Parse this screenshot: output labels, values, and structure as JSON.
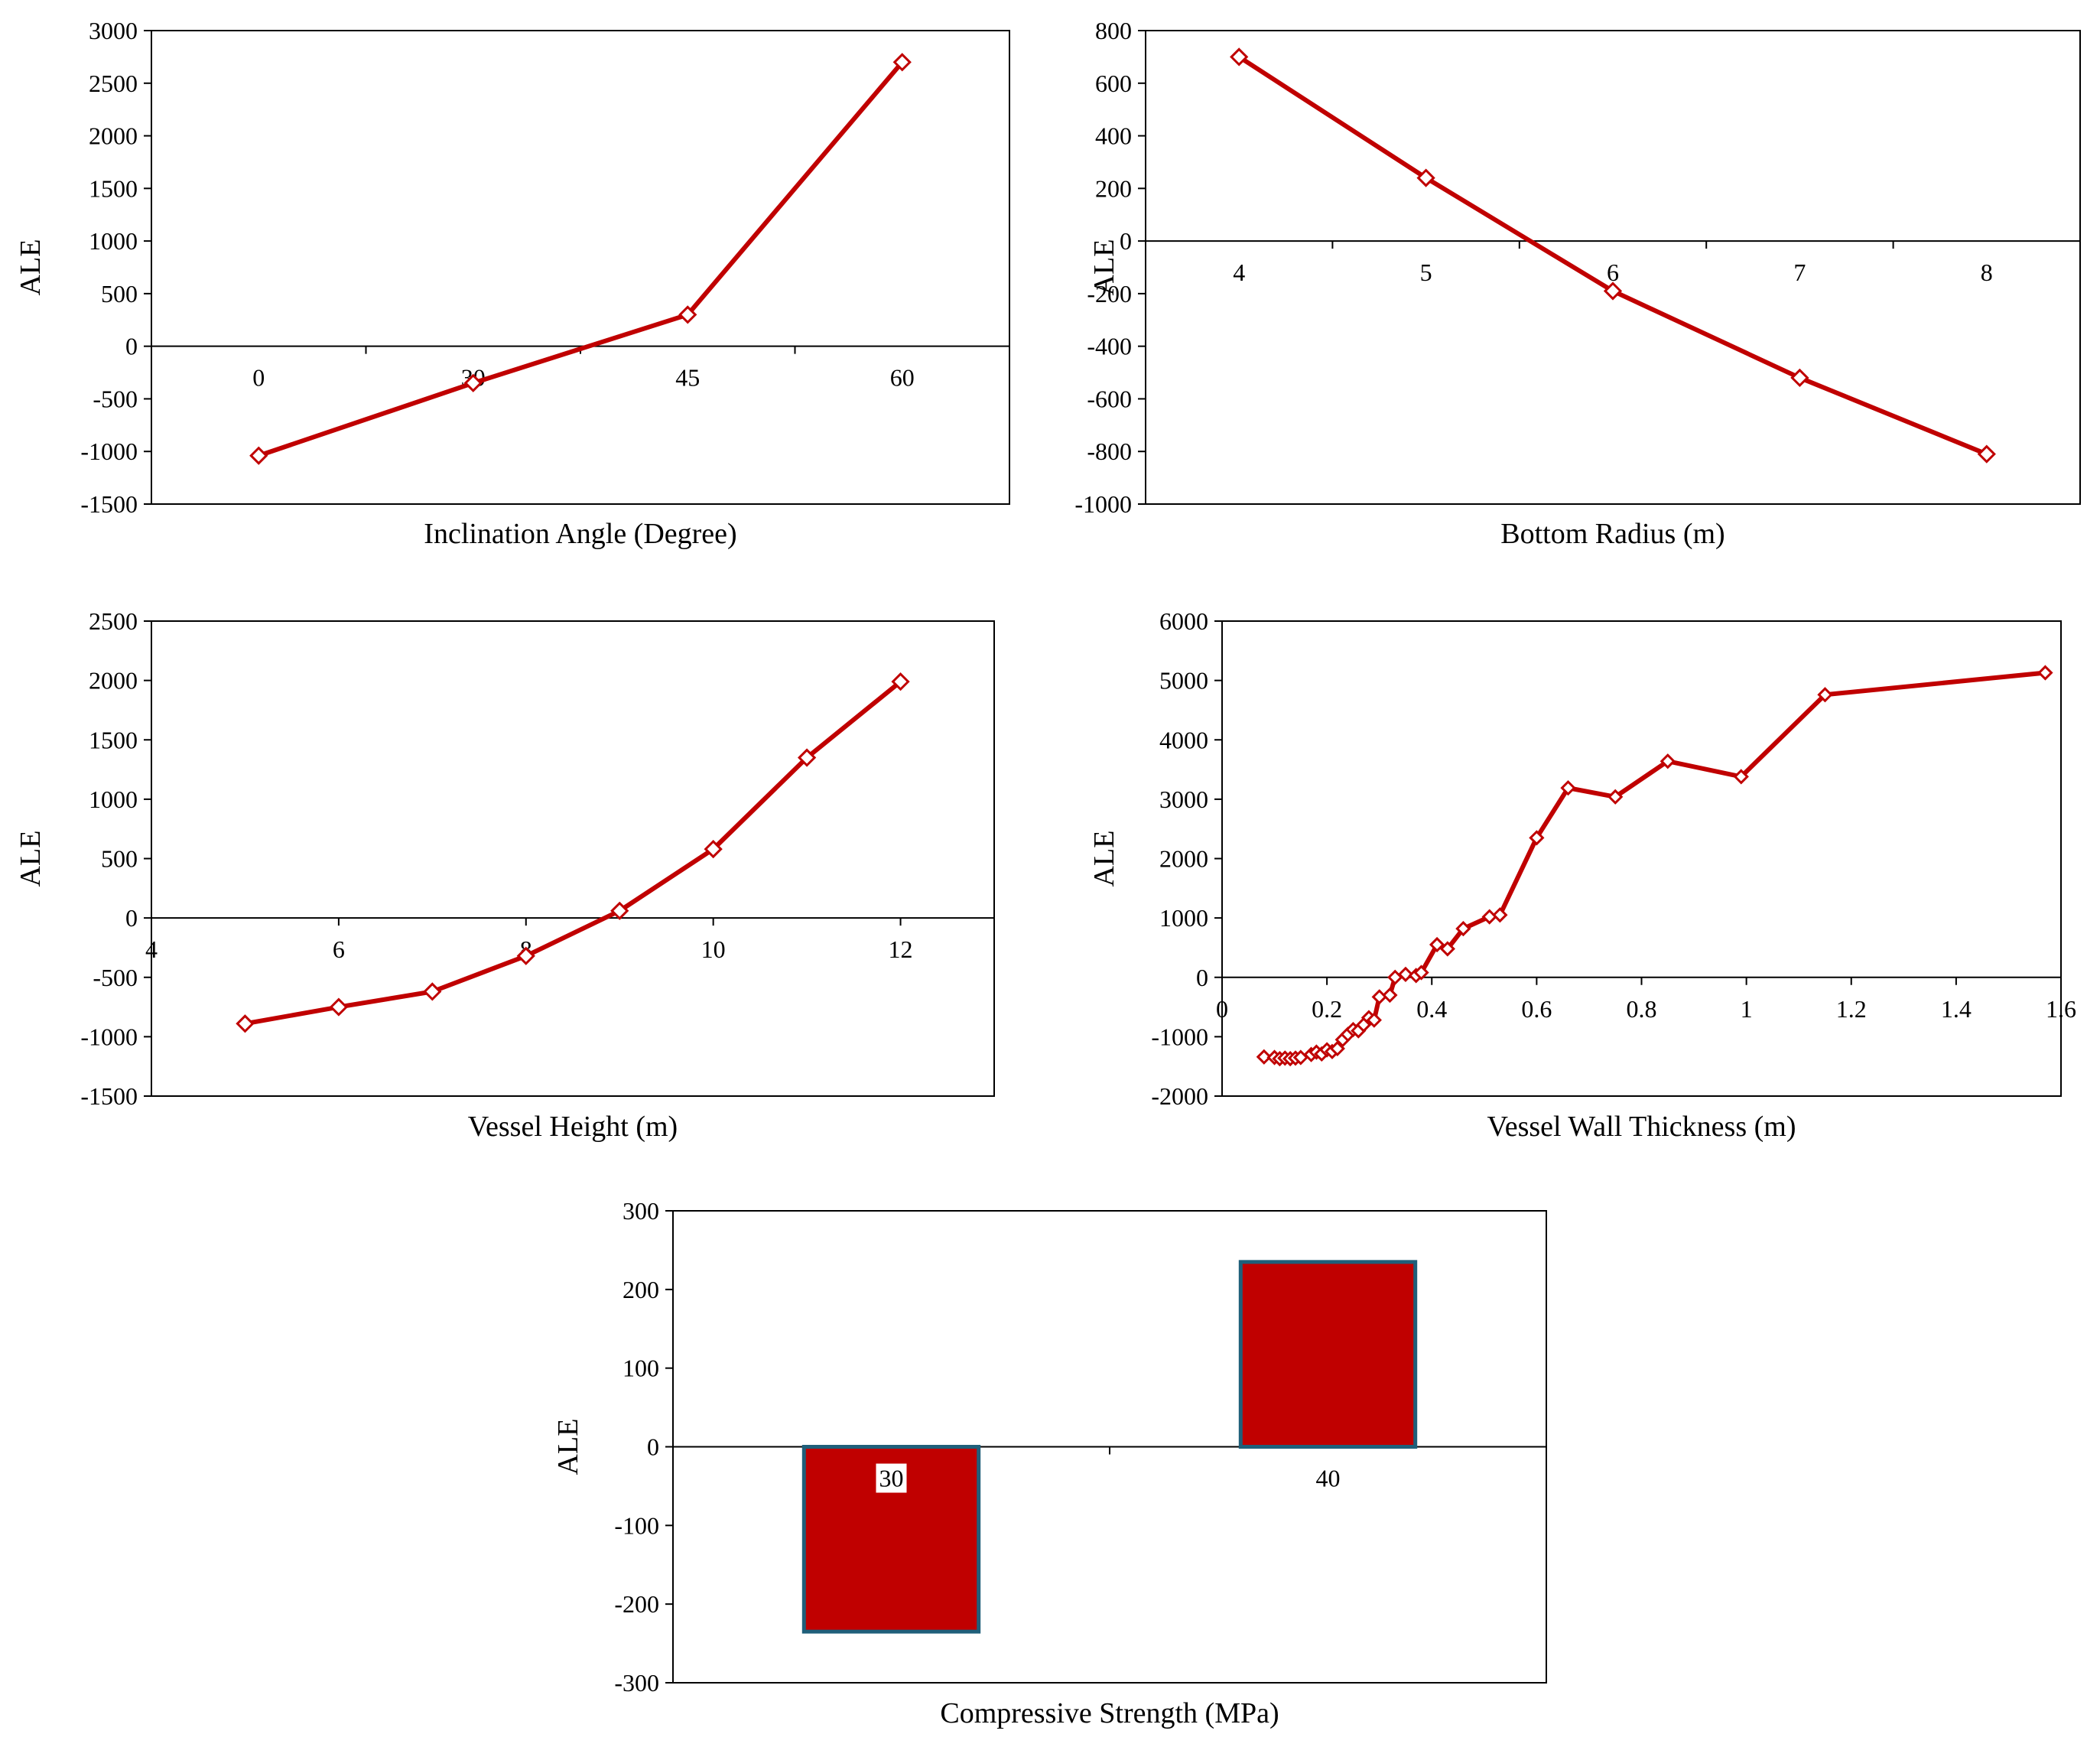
{
  "figure": {
    "series_color": "#C00000",
    "bar_edge_color": "#1F5F7A",
    "axis_color": "#000000"
  },
  "chart_data": [
    {
      "id": "inclination",
      "type": "line",
      "marker": "diamond",
      "title": "",
      "xlabel": "Inclination Angle (Degree)",
      "ylabel": "ALE",
      "x_categories": [
        "0",
        "30",
        "45",
        "60"
      ],
      "values": [
        -1040,
        -350,
        300,
        2700
      ],
      "ylim": [
        -1500,
        3000
      ],
      "ytick_step": 500,
      "y_ticks": [
        "3000",
        "2500",
        "2000",
        "1500",
        "1000",
        "500",
        "0",
        "-500",
        "-1000",
        "-1500"
      ],
      "grid": false
    },
    {
      "id": "radius",
      "type": "line",
      "marker": "diamond",
      "title": "",
      "xlabel": "Bottom Radius (m)",
      "ylabel": "ALE",
      "x_categories": [
        "4",
        "5",
        "6",
        "7",
        "8"
      ],
      "values": [
        700,
        240,
        -190,
        -520,
        -810
      ],
      "ylim": [
        -1000,
        800
      ],
      "ytick_step": 200,
      "y_ticks": [
        "800",
        "600",
        "400",
        "200",
        "0",
        "-200",
        "-400",
        "-600",
        "-800",
        "-1000"
      ],
      "grid": false
    },
    {
      "id": "height",
      "type": "line",
      "marker": "diamond",
      "title": "",
      "xlabel": "Vessel Height (m)",
      "ylabel": "ALE",
      "x": [
        5,
        6,
        7,
        8,
        9,
        10,
        11,
        12
      ],
      "values": [
        -890,
        -750,
        -620,
        -320,
        60,
        580,
        1350,
        1990
      ],
      "xlim": [
        4,
        13
      ],
      "x_ticks": [
        "4",
        "6",
        "8",
        "10",
        "12"
      ],
      "ylim": [
        -1500,
        2500
      ],
      "ytick_step": 500,
      "y_ticks": [
        "2500",
        "2000",
        "1500",
        "1000",
        "500",
        "0",
        "-500",
        "-1000",
        "-1500"
      ],
      "grid": false
    },
    {
      "id": "thickness",
      "type": "line",
      "marker": "diamond",
      "title": "",
      "xlabel": "Vessel Wall Thickness (m)",
      "ylabel": "ALE",
      "x": [
        0.08,
        0.1,
        0.11,
        0.12,
        0.13,
        0.14,
        0.15,
        0.17,
        0.18,
        0.19,
        0.2,
        0.21,
        0.22,
        0.23,
        0.24,
        0.25,
        0.26,
        0.27,
        0.28,
        0.29,
        0.3,
        0.32,
        0.33,
        0.35,
        0.37,
        0.38,
        0.41,
        0.43,
        0.46,
        0.51,
        0.53,
        0.6,
        0.66,
        0.75,
        0.85,
        0.99,
        1.15,
        1.57
      ],
      "values": [
        -1340,
        -1350,
        -1370,
        -1360,
        -1370,
        -1360,
        -1350,
        -1300,
        -1260,
        -1290,
        -1220,
        -1250,
        -1200,
        -1050,
        -960,
        -880,
        -900,
        -800,
        -680,
        -720,
        -330,
        -300,
        0,
        50,
        30,
        80,
        550,
        480,
        820,
        1020,
        1050,
        2350,
        3190,
        3040,
        3640,
        3380,
        4760,
        5130
      ],
      "xlim": [
        0,
        1.6
      ],
      "x_ticks": [
        "0",
        "0.2",
        "0.4",
        "0.6",
        "0.8",
        "1",
        "1.2",
        "1.4",
        "1.6"
      ],
      "ylim": [
        -2000,
        6000
      ],
      "ytick_step": 1000,
      "y_ticks": [
        "6000",
        "5000",
        "4000",
        "3000",
        "2000",
        "1000",
        "0",
        "-1000",
        "-2000"
      ],
      "grid": false
    },
    {
      "id": "strength",
      "type": "bar",
      "title": "",
      "xlabel": "Compressive Strength (MPa)",
      "ylabel": "ALE",
      "categories": [
        "30",
        "40"
      ],
      "values": [
        -235,
        235
      ],
      "ylim": [
        -300,
        300
      ],
      "ytick_step": 100,
      "y_ticks": [
        "300",
        "200",
        "100",
        "0",
        "-100",
        "-200",
        "-300"
      ],
      "grid": false
    }
  ]
}
